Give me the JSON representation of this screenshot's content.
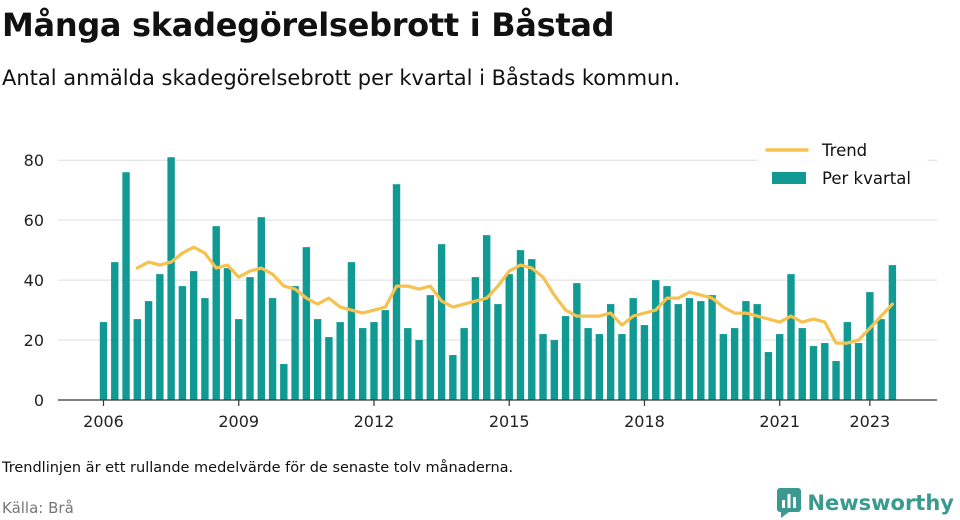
{
  "header": {
    "title": "Många skadegörelsebrott i Båstad",
    "subtitle": "Antal anmälda skadegörelsebrott per kvartal i Båstads kommun."
  },
  "footer": {
    "note": "Trendlinjen är ett rullande medelvärde för de senaste tolv månaderna.",
    "source": "Källa: Brå",
    "brand": "Newsworthy"
  },
  "colors": {
    "bar": "#119a94",
    "trend": "#f6c24f",
    "grid": "#dddddd",
    "axis": "#333333",
    "brand": "#3a9a8f"
  },
  "icons": {
    "brand": "newsworthy-logo-icon"
  },
  "chart_data": {
    "type": "bar",
    "title": "Många skadegörelsebrott i Båstad",
    "subtitle": "Antal anmälda skadegörelsebrott per kvartal i Båstads kommun.",
    "xlabel": "",
    "ylabel": "",
    "ylim": [
      0,
      84
    ],
    "yticks": [
      0,
      20,
      40,
      60,
      80
    ],
    "xtick_labels": [
      "2006",
      "2009",
      "2012",
      "2015",
      "2018",
      "2021",
      "2023"
    ],
    "xtick_quarter_index": [
      0,
      12,
      24,
      36,
      48,
      60,
      68
    ],
    "grid": true,
    "legend_position": "top-right",
    "start": "2006 Q1",
    "categories": [
      "2006 Q1",
      "2006 Q2",
      "2006 Q3",
      "2006 Q4",
      "2007 Q1",
      "2007 Q2",
      "2007 Q3",
      "2007 Q4",
      "2008 Q1",
      "2008 Q2",
      "2008 Q3",
      "2008 Q4",
      "2009 Q1",
      "2009 Q2",
      "2009 Q3",
      "2009 Q4",
      "2010 Q1",
      "2010 Q2",
      "2010 Q3",
      "2010 Q4",
      "2011 Q1",
      "2011 Q2",
      "2011 Q3",
      "2011 Q4",
      "2012 Q1",
      "2012 Q2",
      "2012 Q3",
      "2012 Q4",
      "2013 Q1",
      "2013 Q2",
      "2013 Q3",
      "2013 Q4",
      "2014 Q1",
      "2014 Q2",
      "2014 Q3",
      "2014 Q4",
      "2015 Q1",
      "2015 Q2",
      "2015 Q3",
      "2015 Q4",
      "2016 Q1",
      "2016 Q2",
      "2016 Q3",
      "2016 Q4",
      "2017 Q1",
      "2017 Q2",
      "2017 Q3",
      "2017 Q4",
      "2018 Q1",
      "2018 Q2",
      "2018 Q3",
      "2018 Q4",
      "2019 Q1",
      "2019 Q2",
      "2019 Q3",
      "2019 Q4",
      "2020 Q1",
      "2020 Q2",
      "2020 Q3",
      "2020 Q4",
      "2021 Q1",
      "2021 Q2",
      "2021 Q3",
      "2021 Q4",
      "2022 Q1",
      "2022 Q2",
      "2022 Q3",
      "2022 Q4",
      "2023 Q1",
      "2023 Q2",
      "2023 Q3"
    ],
    "series": [
      {
        "name": "Per kvartal",
        "type": "bar",
        "values": [
          26,
          46,
          76,
          27,
          33,
          42,
          81,
          38,
          43,
          34,
          58,
          44,
          27,
          41,
          61,
          34,
          12,
          38,
          51,
          27,
          21,
          26,
          46,
          24,
          26,
          30,
          72,
          24,
          20,
          35,
          52,
          15,
          24,
          41,
          55,
          32,
          42,
          50,
          47,
          22,
          20,
          28,
          39,
          24,
          22,
          32,
          22,
          34,
          25,
          40,
          38,
          32,
          34,
          33,
          35,
          22,
          24,
          33,
          32,
          16,
          22,
          42,
          24,
          18,
          19,
          13,
          26,
          19,
          36,
          27,
          45
        ]
      },
      {
        "name": "Trend",
        "type": "line",
        "values": [
          null,
          null,
          null,
          44,
          46,
          45,
          46,
          49,
          51,
          49,
          44,
          45,
          41,
          43,
          44,
          42,
          38,
          37,
          34,
          32,
          34,
          31,
          30,
          29,
          30,
          31,
          38,
          38,
          37,
          38,
          33,
          31,
          32,
          33,
          34,
          38,
          43,
          45,
          44,
          41,
          35,
          30,
          28,
          28,
          28,
          29,
          25,
          28,
          29,
          30,
          34,
          34,
          36,
          35,
          34,
          31,
          29,
          29,
          28,
          27,
          26,
          28,
          26,
          27,
          26,
          19,
          19,
          20,
          24,
          28,
          32
        ]
      }
    ]
  }
}
